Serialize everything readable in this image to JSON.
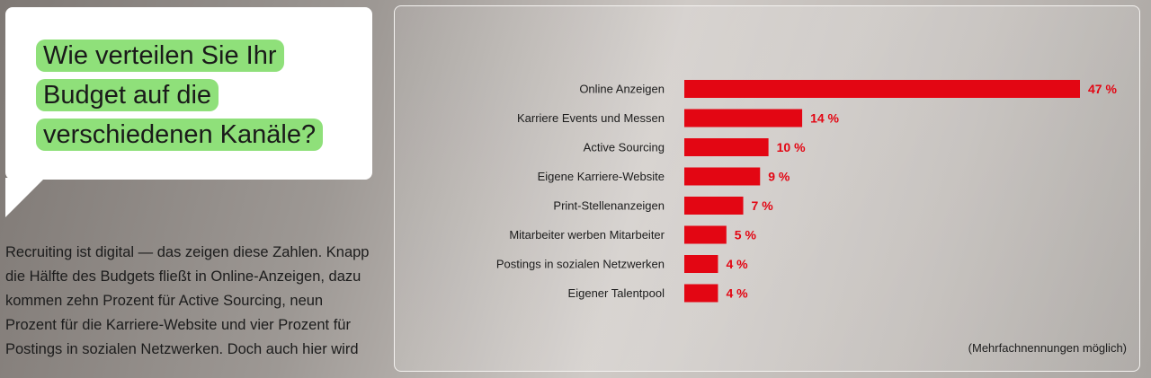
{
  "question": {
    "lines": [
      "Wie verteilen Sie Ihr",
      "Budget auf die",
      "verschiedenen Kanäle?"
    ]
  },
  "body_text": "Recruiting ist digital — das zeigen diese Zahlen. Knapp die Hälfte des Budgets fließt in Online-Anzeigen, dazu kommen zehn Prozent für Active Sourcing, neun Prozent für die Karriere-Website und vier Prozent für Postings in sozialen Netzwerken. Doch auch hier wird",
  "note": "(Mehrfachnennungen möglich)",
  "colors": {
    "bar": "#e30613",
    "highlight": "#8fe07a"
  },
  "chart_data": {
    "type": "bar",
    "orientation": "horizontal",
    "categories": [
      "Online Anzeigen",
      "Karriere Events und Messen",
      "Active Sourcing",
      "Eigene Karriere-Website",
      "Print-Stellenanzeigen",
      "Mitarbeiter werben Mitarbeiter",
      "Postings in sozialen Netzwerken",
      "Eigener Talentpool"
    ],
    "values": [
      47,
      14,
      10,
      9,
      7,
      5,
      4,
      4
    ],
    "value_labels": [
      "47 %",
      "14 %",
      "10 %",
      "9 %",
      "7 %",
      "5 %",
      "4 %",
      "4 %"
    ],
    "unit": "%",
    "grid": false
  }
}
